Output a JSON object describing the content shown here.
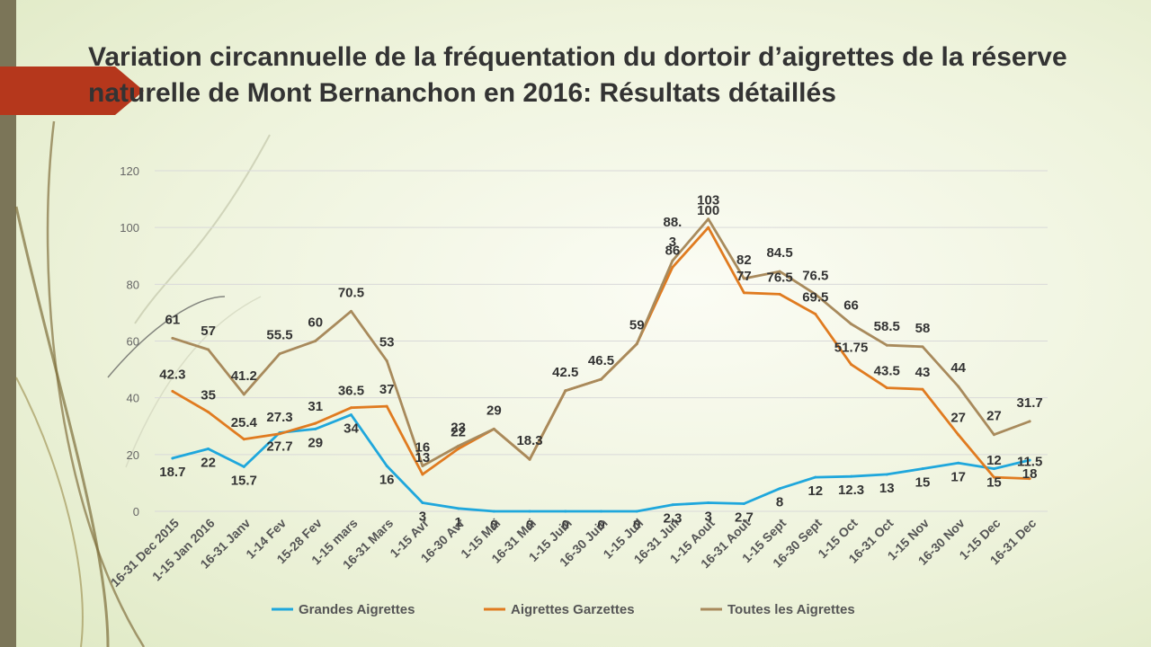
{
  "slide": {
    "title": "Variation circannuelle de la fréquentation du dortoir d’aigrettes de la réserve naturelle de Mont Bernanchon en 2016: Résultats détaillés"
  },
  "chart_data": {
    "type": "line",
    "title": "Variation circannuelle de la fréquentation du dortoir d’aigrettes de la réserve naturelle de Mont Bernanchon en 2016: Résultats détaillés",
    "xlabel": "",
    "ylabel": "",
    "ylim": [
      0,
      120
    ],
    "yticks": [
      0,
      20,
      40,
      60,
      80,
      100,
      120
    ],
    "grid": true,
    "legend_position": "bottom",
    "categories": [
      "16-31 Dec 2015",
      "1-15 Jan 2016",
      "16-31 Janv",
      "1-14 Fev",
      "15-28 Fev",
      "1-15 mars",
      "16-31 Mars",
      "1-15 Avr",
      "16-30 Avr",
      "1-15 Mai",
      "16-31 Mai",
      "1-15 Juin",
      "16-30 Juin",
      "1-15 Juil",
      "16-31 Juil",
      "1-15 Aout",
      "16-31 Aout",
      "1-15 Sept",
      "16-30 Sept",
      "1-15 Oct",
      "16-31 Oct",
      "1-15 Nov",
      "16-30 Nov",
      "1-15 Dec",
      "16-31 Dec"
    ],
    "series": [
      {
        "name": "Grandes Aigrettes",
        "color": "#1fa7dc",
        "values": [
          18.7,
          22,
          15.7,
          27.7,
          29,
          34,
          16,
          3,
          1,
          0,
          0,
          0,
          0,
          0,
          2.3,
          3,
          2.7,
          8,
          12,
          12.3,
          13,
          15,
          17,
          15,
          18
        ],
        "labels": [
          "18.7",
          "22",
          "15.7",
          "27.7",
          "29",
          "34",
          "16",
          "3",
          "1",
          "0",
          "0",
          "0",
          "0",
          "0",
          "2.3",
          "3",
          "2.7",
          "8",
          "12",
          "12.3",
          "13",
          "15",
          "17",
          "15",
          "18"
        ]
      },
      {
        "name": "Aigrettes Garzettes",
        "color": "#e07b20",
        "values": [
          42.3,
          35,
          25.4,
          27.3,
          31,
          36.5,
          37,
          13,
          22,
          29,
          18.3,
          42.5,
          46.5,
          59,
          86,
          100,
          77,
          76.5,
          69.5,
          51.75,
          43.5,
          43,
          27,
          12,
          11.5
        ],
        "labels": [
          "42.3",
          "35",
          "25.4",
          "27.3",
          "31",
          "36.5",
          "37",
          "13",
          "22",
          "",
          "",
          "",
          "",
          "",
          "86",
          "100",
          "77",
          "76.5",
          "69.5",
          "51.75",
          "43.5",
          "43",
          "27",
          "12",
          "11.5"
        ]
      },
      {
        "name": "Toutes les Aigrettes",
        "color": "#a88a5c",
        "values": [
          61,
          57,
          41.2,
          55.5,
          60,
          70.5,
          53,
          16,
          23,
          29,
          18.3,
          42.5,
          46.5,
          59,
          88.3,
          103,
          82,
          84.5,
          76.5,
          66,
          58.5,
          58,
          44,
          27,
          31.7
        ],
        "labels": [
          "61",
          "57",
          "41.2",
          "55.5",
          "60",
          "70.5",
          "53",
          "16",
          "23",
          "29",
          "18.3",
          "42.5",
          "46.5",
          "59",
          "88.\n3",
          "103",
          "82",
          "84.5",
          "76.5",
          "66",
          "58.5",
          "58",
          "44",
          "27",
          "31.7"
        ]
      }
    ]
  }
}
